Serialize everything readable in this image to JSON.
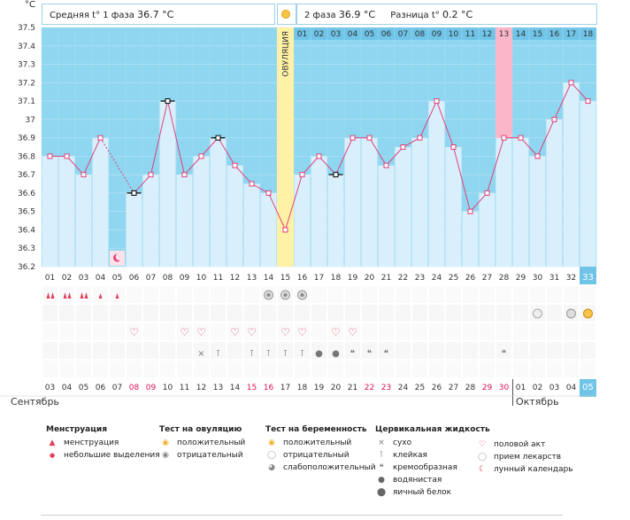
{
  "header": {
    "y_unit": "°C",
    "phase1_label": "Средняя t° 1 фаза",
    "phase1_value": "36.7 °C",
    "phase2_label": "2 фаза",
    "phase2_value": "36.9 °C",
    "diff_label": "Разница t°",
    "diff_value": "0.2 °C"
  },
  "ovulation_label": "ОВУЛЯЦИЯ",
  "months": {
    "first": "Сентябрь",
    "second": "Октябрь"
  },
  "colors": {
    "sky": "#8fd6f0",
    "bar": "#d9f0fc",
    "line": "#e0407a",
    "ovulation": "#fff1a6",
    "highlight": "#f9b7c9",
    "weekend": "#e0105a"
  },
  "chart_data": {
    "type": "line",
    "title": "",
    "xlabel": "",
    "ylabel": "°C",
    "ylim": [
      36.2,
      37.5
    ],
    "y_ticks": [
      "36.2",
      "36.3",
      "36.4",
      "36.5",
      "36.6",
      "36.7",
      "36.8",
      "36.9",
      "37",
      "37.1",
      "37.2",
      "37.3",
      "37.4",
      "37.5"
    ],
    "cycle_days": [
      "01",
      "02",
      "03",
      "04",
      "05",
      "06",
      "07",
      "08",
      "09",
      "10",
      "11",
      "12",
      "13",
      "14",
      "15",
      "16",
      "17",
      "18",
      "19",
      "20",
      "21",
      "22",
      "23",
      "24",
      "25",
      "26",
      "27",
      "28",
      "29",
      "30",
      "31",
      "32",
      "33"
    ],
    "post_ovulation_days": [
      "01",
      "02",
      "03",
      "04",
      "05",
      "06",
      "07",
      "08",
      "09",
      "10",
      "11",
      "12",
      "13",
      "14",
      "15",
      "16",
      "17",
      "18"
    ],
    "dates": [
      "03",
      "04",
      "05",
      "06",
      "07",
      "08",
      "09",
      "10",
      "11",
      "12",
      "13",
      "14",
      "15",
      "16",
      "17",
      "18",
      "19",
      "20",
      "21",
      "22",
      "23",
      "24",
      "25",
      "26",
      "27",
      "28",
      "29",
      "30",
      "01",
      "02",
      "03",
      "04",
      "05"
    ],
    "weekend_dates_index": [
      5,
      6,
      12,
      13,
      19,
      20,
      26,
      27
    ],
    "temperatures": [
      36.8,
      36.8,
      36.7,
      36.9,
      null,
      36.6,
      36.7,
      37.1,
      36.7,
      36.8,
      36.9,
      36.75,
      36.65,
      36.6,
      36.4,
      36.7,
      36.8,
      36.7,
      36.9,
      36.9,
      36.75,
      36.85,
      36.9,
      37.1,
      36.85,
      36.5,
      36.6,
      36.9,
      36.9,
      36.8,
      37.0,
      37.2,
      37.1
    ],
    "black_marked_index": [
      5,
      7,
      10,
      17
    ],
    "ovulation_index": 14,
    "highlight_post_day": "13",
    "current_day": "33",
    "current_date": "05"
  },
  "legend": {
    "menstruation": {
      "title": "Менструация",
      "items": [
        "менструация",
        "небольшие выделения"
      ]
    },
    "ovulation_test": {
      "title": "Тест на овуляцию",
      "items": [
        "положительный",
        "отрицательный"
      ]
    },
    "pregnancy_test": {
      "title": "Тест на беременность",
      "items": [
        "положительный",
        "отрицательный",
        "слабоположительный"
      ]
    },
    "cervical": {
      "title": "Цервикальная жидкость",
      "items": [
        "сухо",
        "клейкая",
        "кремообразная",
        "водянистая",
        "яичный белок"
      ]
    },
    "other": {
      "items": [
        "половой акт",
        "прием лекарств",
        "лунный календарь"
      ]
    }
  }
}
